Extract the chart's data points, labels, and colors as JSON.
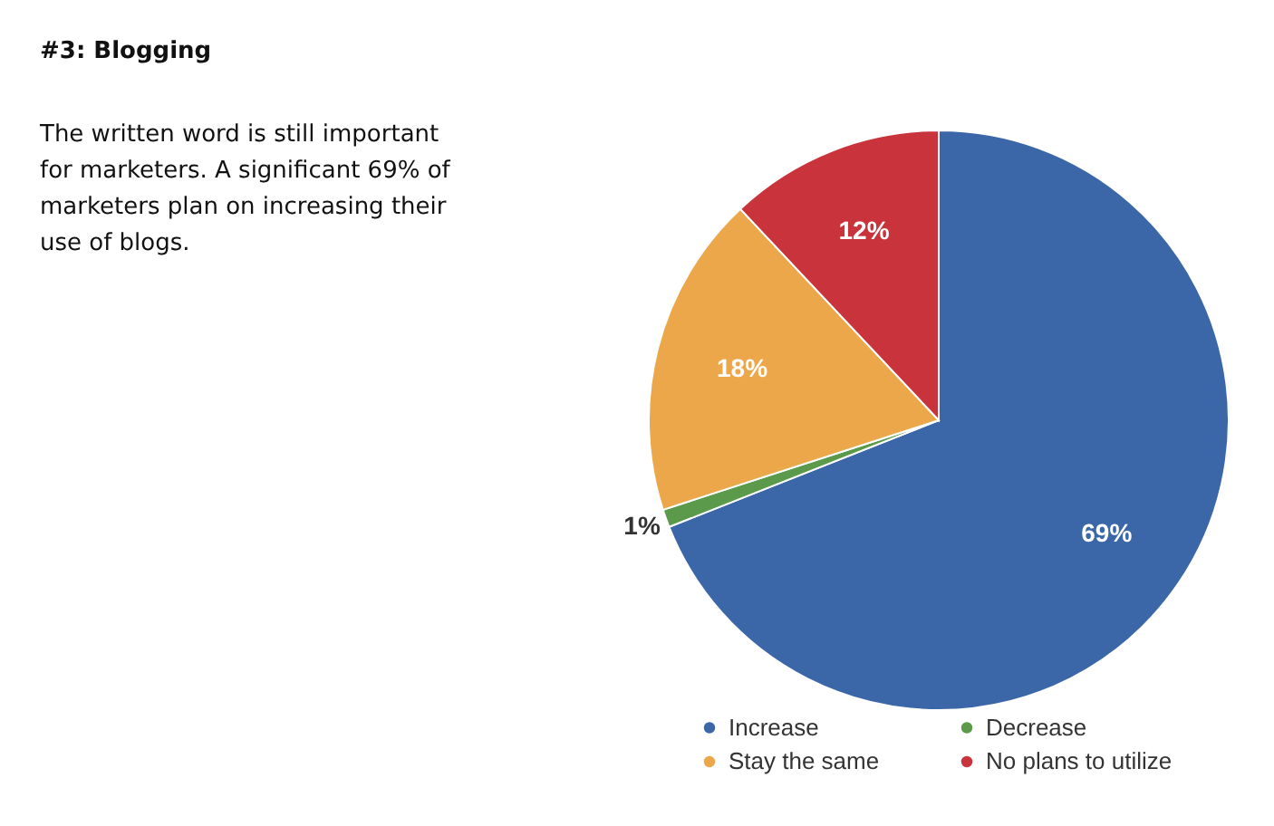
{
  "chart_data": {
    "type": "pie",
    "title": "#3: Blogging",
    "subtitle": "The written word is still important for marketers. A significant 69% of marketers plan on increasing their use of blogs.",
    "categories": [
      "Increase",
      "Decrease",
      "Stay the same",
      "No plans to utilize"
    ],
    "values": [
      69,
      1,
      18,
      12
    ],
    "colors": [
      "#3b67a9",
      "#5c9a4b",
      "#eca74b",
      "#c9333b"
    ],
    "value_labels": [
      "69%",
      "1%",
      "18%",
      "12%"
    ],
    "legend": "bottom"
  }
}
